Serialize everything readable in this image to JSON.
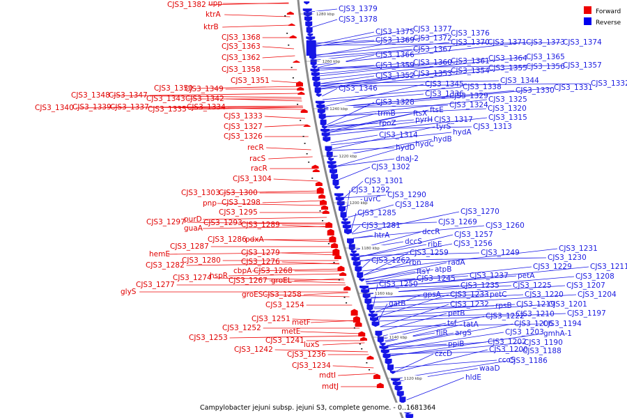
{
  "caption": "Campylobacter jejuni subsp. jejuni S3, complete genome. - 0..1681364",
  "legend": [
    {
      "label": "Forward",
      "color": "#ee0000"
    },
    {
      "label": "Reverse",
      "color": "#0000ee"
    }
  ],
  "colors": {
    "forward": "#ee0000",
    "reverse": "#1515e6",
    "backbone": "#8a8a8a"
  },
  "ticks": [
    "1280 kbp",
    "1260 kbp",
    "1240 kbp",
    "1220 kbp",
    "1200 kbp",
    "1180 kbp",
    "1160 kbp",
    "1140 kbp",
    "1120 kbp"
  ],
  "forward_labels": [
    "CJS3_1382",
    "upp",
    "ktrA",
    "ktrB",
    "CJS3_1368",
    "CJS3_1363",
    "CJS3_1362",
    "CJS3_1358",
    "CJS3_1351",
    "CJS3_1350",
    "CJS3_1349",
    "CJS3_1348",
    "CJS3_1347",
    "CJS3_1343",
    "CJS3_1342",
    "CJS3_1340",
    "CJS3_1339",
    "CJS3_1337",
    "CJS3_1335",
    "CJS3_1334",
    "CJS3_1333",
    "CJS3_1327",
    "CJS3_1326",
    "recR",
    "racS",
    "racR",
    "CJS3_1304",
    "CJS3_1303",
    "CJS3_1300",
    "pnp",
    "CJS3_1298",
    "CJS3_1295",
    "CJS3_1297",
    "purD",
    "CJS3_1293",
    "CJS3_1289",
    "guaA",
    "CJS3_1286",
    "pdxA",
    "hemE",
    "CJS3_1287",
    "CJS3_1279",
    "CJS3_1282",
    "CJS3_1280",
    "CJS3_1276",
    "cbpA",
    "CJS3_1268",
    "CJS3_1274",
    "hspR",
    "CJS3_1277",
    "CJS3_1267",
    "groEL",
    "glyS",
    "groES",
    "CJS3_1258",
    "CJS3_1254",
    "CJS3_1251",
    "metF",
    "CJS3_1252",
    "metE",
    "CJS3_1253",
    "CJS3_1241",
    "CJS3_1242",
    "luxS",
    "CJS3_1236",
    "CJS3_1234",
    "mdtI",
    "mdtJ"
  ],
  "reverse_labels": [
    "CJS3_1379",
    "CJS3_1378",
    "CJS3_1375",
    "CJS3_1377",
    "CJS3_1376",
    "CJS3_1369",
    "CJS3_1372",
    "CJS3_1370",
    "CJS3_1371",
    "CJS3_1373",
    "CJS3_1374",
    "CJS3_1367",
    "CJS3_1366",
    "CJS3_1364",
    "CJS3_1365",
    "CJS3_1359",
    "CJS3_1360",
    "CJS3_1361",
    "CJS3_1355",
    "CJS3_1356",
    "CJS3_1357",
    "CJS3_1352",
    "CJS3_1353",
    "CJS3_1354",
    "CJS3_1345",
    "CJS3_1344",
    "CJS3_1346",
    "CJS3_1338",
    "CJS3_1330",
    "CJS3_1331",
    "CJS3_1332",
    "CJS3_1336",
    "CJS3_1329",
    "CJS3_1325",
    "CJS3_1328",
    "CJS3_1324",
    "CJS3_1320",
    "trmB",
    "ftsX",
    "ftsE",
    "rpoZ",
    "pyrH",
    "CJS3_1317",
    "CJS3_1315",
    "tyrS",
    "CJS3_1313",
    "CJS3_1314",
    "hydA",
    "hydB",
    "hydC",
    "hydD",
    "dnaJ-2",
    "CJS3_1302",
    "CJS3_1301",
    "CJS3_1292",
    "CJS3_1290",
    "uvrC",
    "CJS3_1284",
    "CJS3_1285",
    "CJS3_1270",
    "CJS3_1269",
    "CJS3_1281",
    "CJS3_1260",
    "dccR",
    "CJS3_1257",
    "htrA",
    "dccS",
    "ribE",
    "CJS3_1256",
    "CJS3_1259",
    "CJS3_1249",
    "CJS3_1262",
    "rbn",
    "radA",
    "CJS3_1231",
    "CJS3_1230",
    "ftsY",
    "atpB",
    "CJS3_1229",
    "CJS3_1211",
    "CJS3_1245",
    "CJS3_1237",
    "petA",
    "CJS3_1208",
    "CJS3_1250",
    "CJS3_1235",
    "CJS3_1225",
    "CJS3_1207",
    "gpsA",
    "CJS3_1233",
    "petC",
    "CJS3_1220",
    "CJS3_1204",
    "gatB",
    "CJS3_1232",
    "rpsB",
    "CJS3_1219",
    "CJS3_1201",
    "petB",
    "CJS3_1222",
    "CJS3_1210",
    "CJS3_1197",
    "tsf",
    "tatA",
    "CJS3_1206",
    "CJS3_1194",
    "fliR",
    "argS",
    "CJS3_1203",
    "gmhA-1",
    "ppiB",
    "CJS3_1202",
    "CJS3_1190",
    "czcD",
    "CJS3_1200",
    "CJS3_1188",
    "ccoS",
    "waaD",
    "CJS3_1186",
    "hldE"
  ]
}
